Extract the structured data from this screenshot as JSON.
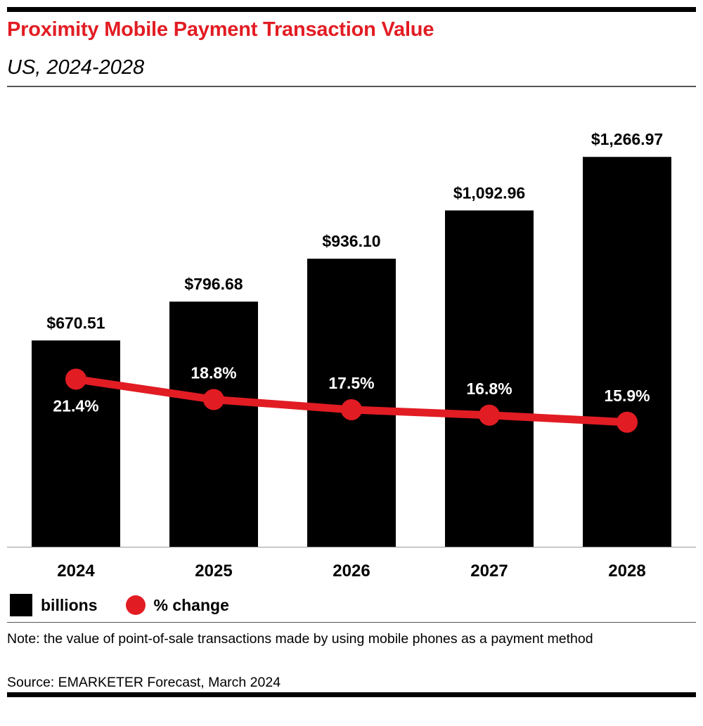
{
  "header": {
    "title": "Proximity Mobile Payment Transaction Value",
    "subtitle": "US, 2024-2028"
  },
  "legend": {
    "bar_label": "billions",
    "line_label": "% change"
  },
  "footer": {
    "note": "Note: the value of point-of-sale transactions made by using mobile phones as a payment method",
    "source": "Source: EMARKETER Forecast, March 2024"
  },
  "colors": {
    "accent": "#e21c23",
    "bar": "#000000",
    "text": "#000000"
  },
  "chart_data": {
    "type": "bar",
    "categories": [
      "2024",
      "2025",
      "2026",
      "2027",
      "2028"
    ],
    "series": [
      {
        "name": "billions",
        "type": "bar",
        "values": [
          670.51,
          796.68,
          936.1,
          1092.96,
          1266.97
        ],
        "labels": [
          "$670.51",
          "$796.68",
          "$936.10",
          "$1,092.96",
          "$1,266.97"
        ]
      },
      {
        "name": "% change",
        "type": "line",
        "values": [
          21.4,
          18.8,
          17.5,
          16.8,
          15.9
        ],
        "labels": [
          "21.4%",
          "18.8%",
          "17.5%",
          "16.8%",
          "15.9%"
        ]
      }
    ],
    "ylim": [
      0,
      1400
    ],
    "y2lim": [
      0,
      55
    ],
    "grid": false,
    "legend_position": "bottom-left"
  }
}
